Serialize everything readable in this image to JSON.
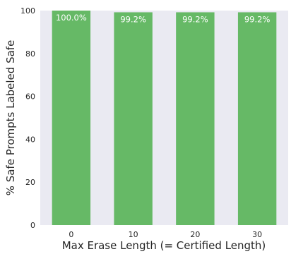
{
  "chart_data": {
    "type": "bar",
    "title": "",
    "xlabel": "Max Erase Length (= Certified Length)",
    "ylabel": "% Safe Prompts Labeled Safe",
    "categories": [
      "0",
      "10",
      "20",
      "30"
    ],
    "values": [
      100.0,
      99.2,
      99.2,
      99.2
    ],
    "data_labels": [
      "100.0%",
      "99.2%",
      "99.2%",
      "99.2%"
    ],
    "yticks": [
      "0",
      "20",
      "40",
      "60",
      "80",
      "100"
    ],
    "ylim": [
      0,
      100
    ],
    "grid": false,
    "bar_color": "#66b966",
    "plot_background": "#eaeaf2"
  }
}
